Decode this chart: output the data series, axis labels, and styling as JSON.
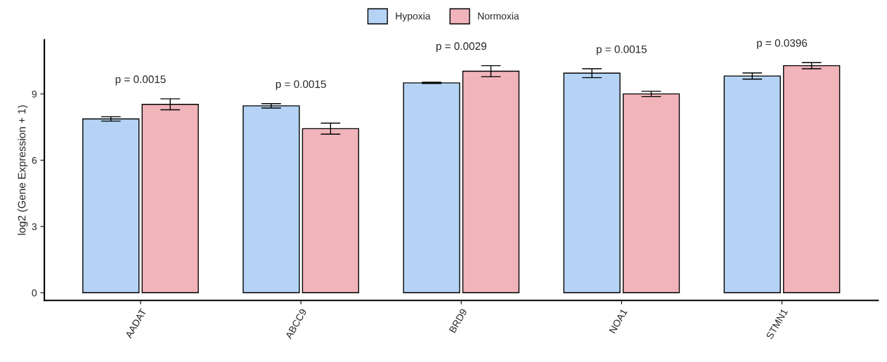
{
  "chart_data": {
    "type": "bar",
    "ylabel": "log2 (Gene Expression + 1)",
    "categories": [
      "AADAT",
      "ABCC9",
      "BRD9",
      "NOA1",
      "STMN1"
    ],
    "series": [
      {
        "name": "Hypoxia",
        "color": "#b5d3f5",
        "values": [
          7.87,
          8.46,
          9.5,
          9.94,
          9.81
        ],
        "errors": [
          0.1,
          0.1,
          0.03,
          0.2,
          0.14
        ]
      },
      {
        "name": "Normoxia",
        "color": "#f1b4bb",
        "values": [
          8.53,
          7.43,
          10.03,
          9.0,
          10.28
        ],
        "errors": [
          0.25,
          0.25,
          0.25,
          0.12,
          0.14
        ]
      }
    ],
    "annotations": [
      "p = 0.0015",
      "p = 0.0015",
      "p = 0.0029",
      "p = 0.0015",
      "p = 0.0396"
    ],
    "ylim": [
      -0.35,
      11.45
    ],
    "yticks": [
      0,
      3,
      6,
      9
    ],
    "grid": false,
    "legend": "top"
  }
}
